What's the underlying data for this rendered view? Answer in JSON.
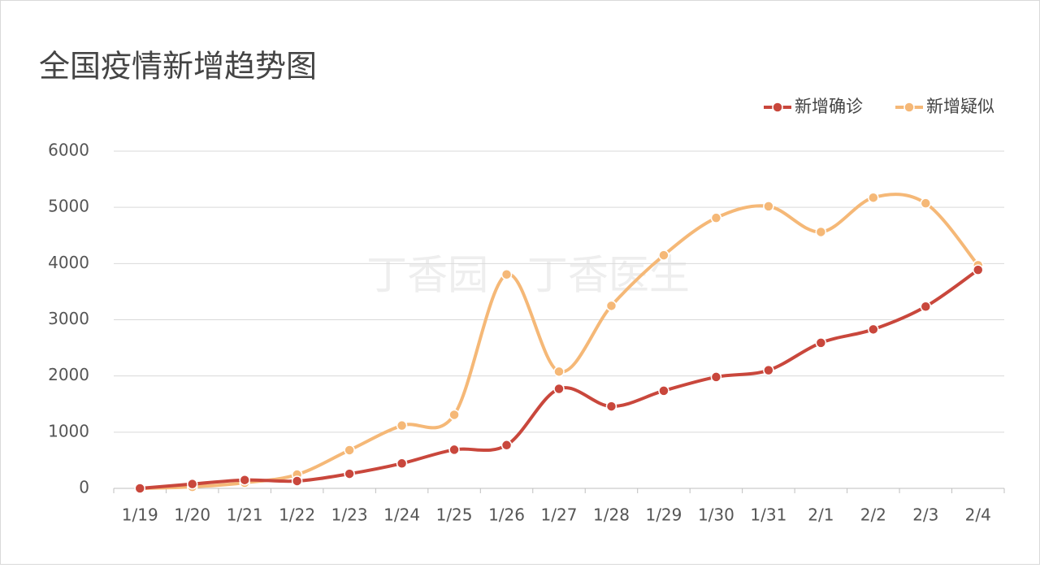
{
  "chart_data": {
    "type": "line",
    "title": "全国疫情新增趋势图",
    "watermark": "丁香园 · 丁香医生",
    "categories": [
      "1/19",
      "1/20",
      "1/21",
      "1/22",
      "1/23",
      "1/24",
      "1/25",
      "1/26",
      "1/27",
      "1/28",
      "1/29",
      "1/30",
      "1/31",
      "2/1",
      "2/2",
      "2/3",
      "2/4"
    ],
    "series": [
      {
        "name": "新增确诊",
        "color": "#c9473c",
        "values": [
          0,
          77,
          149,
          131,
          259,
          444,
          688,
          769,
          1771,
          1459,
          1737,
          1982,
          2102,
          2590,
          2829,
          3235,
          3887
        ]
      },
      {
        "name": "新增疑似",
        "color": "#f5b877",
        "values": [
          0,
          27,
          100,
          245,
          680,
          1118,
          1309,
          3806,
          2077,
          3248,
          4148,
          4812,
          5019,
          4562,
          5173,
          5072,
          3971
        ]
      }
    ],
    "ylim": [
      0,
      6000
    ],
    "yticks": [
      0,
      1000,
      2000,
      3000,
      4000,
      5000,
      6000
    ],
    "grid": true,
    "legend": "top-right"
  }
}
